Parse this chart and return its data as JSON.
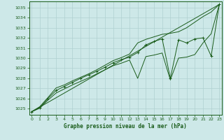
{
  "bg_color": "#cde8e8",
  "grid_color": "#b0d0d0",
  "line_color": "#1a5c1a",
  "title": "Graphe pression niveau de la mer (hPa)",
  "ylim": [
    1024.4,
    1035.6
  ],
  "xlim": [
    -0.3,
    23.3
  ],
  "yticks": [
    1025,
    1026,
    1027,
    1028,
    1029,
    1030,
    1031,
    1032,
    1033,
    1034,
    1035
  ],
  "xticks": [
    0,
    1,
    2,
    3,
    4,
    5,
    6,
    7,
    8,
    9,
    10,
    11,
    12,
    13,
    14,
    15,
    16,
    17,
    18,
    19,
    20,
    21,
    22,
    23
  ],
  "hours": [
    0,
    1,
    2,
    3,
    4,
    5,
    6,
    7,
    8,
    9,
    10,
    11,
    12,
    13,
    14,
    15,
    16,
    17,
    18,
    19,
    20,
    21,
    22,
    23
  ],
  "main_line": [
    1024.7,
    1025.1,
    1026.0,
    1026.8,
    1027.2,
    1027.6,
    1028.0,
    1028.35,
    1028.7,
    1029.1,
    1029.55,
    1029.85,
    1030.1,
    1030.55,
    1031.3,
    1031.65,
    1031.9,
    1028.0,
    1031.8,
    1031.5,
    1031.9,
    1032.0,
    1030.2,
    1035.3
  ],
  "upper_env": [
    1024.7,
    1025.2,
    1026.1,
    1027.05,
    1027.35,
    1027.75,
    1028.1,
    1028.45,
    1028.85,
    1029.3,
    1029.75,
    1030.05,
    1030.4,
    1031.5,
    1031.85,
    1032.1,
    1032.35,
    1032.45,
    1032.6,
    1033.0,
    1033.55,
    1034.1,
    1034.55,
    1035.3
  ],
  "lower_env": [
    1024.7,
    1025.05,
    1025.85,
    1026.55,
    1026.95,
    1027.35,
    1027.7,
    1028.05,
    1028.45,
    1028.85,
    1029.25,
    1029.5,
    1029.8,
    1028.0,
    1030.15,
    1030.3,
    1030.5,
    1027.85,
    1030.0,
    1030.1,
    1030.35,
    1031.5,
    1032.4,
    1035.3
  ],
  "trend_x": [
    0,
    23
  ],
  "trend_y": [
    1024.7,
    1035.3
  ]
}
